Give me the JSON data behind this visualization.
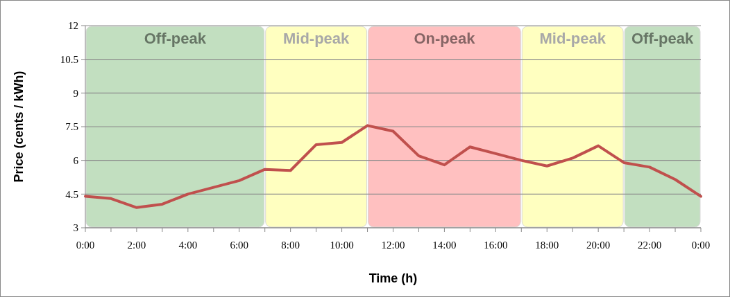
{
  "chart_data": {
    "type": "line",
    "xlabel": "Time (h)",
    "ylabel": "Price (cents / kWh)",
    "x": [
      0,
      1,
      2,
      3,
      4,
      5,
      6,
      7,
      8,
      9,
      10,
      11,
      12,
      13,
      14,
      15,
      16,
      17,
      18,
      19,
      20,
      21,
      22,
      23,
      24
    ],
    "series": [
      {
        "color": "#c0504d",
        "values": [
          4.4,
          4.3,
          3.9,
          4.05,
          4.5,
          4.8,
          5.1,
          5.6,
          5.55,
          6.7,
          6.8,
          7.55,
          7.3,
          6.2,
          5.8,
          6.6,
          6.3,
          6.0,
          5.75,
          6.1,
          6.65,
          5.9,
          5.7,
          5.15,
          4.4
        ]
      }
    ],
    "xlim": [
      0,
      24
    ],
    "xticks": [
      {
        "value": 0,
        "label": "0:00"
      },
      {
        "value": 1,
        "label": null
      },
      {
        "value": 2,
        "label": "2:00"
      },
      {
        "value": 3,
        "label": null
      },
      {
        "value": 4,
        "label": "4:00"
      },
      {
        "value": 5,
        "label": null
      },
      {
        "value": 6,
        "label": "6:00"
      },
      {
        "value": 7,
        "label": null
      },
      {
        "value": 8,
        "label": "8:00"
      },
      {
        "value": 9,
        "label": null
      },
      {
        "value": 10,
        "label": "10:00"
      },
      {
        "value": 11,
        "label": null
      },
      {
        "value": 12,
        "label": "12:00"
      },
      {
        "value": 13,
        "label": null
      },
      {
        "value": 14,
        "label": "14:00"
      },
      {
        "value": 15,
        "label": null
      },
      {
        "value": 16,
        "label": "16:00"
      },
      {
        "value": 17,
        "label": null
      },
      {
        "value": 18,
        "label": "18:00"
      },
      {
        "value": 19,
        "label": null
      },
      {
        "value": 20,
        "label": "20:00"
      },
      {
        "value": 21,
        "label": null
      },
      {
        "value": 22,
        "label": "22:00"
      },
      {
        "value": 23,
        "label": null
      },
      {
        "value": 24,
        "label": "0:00"
      }
    ],
    "ylim": [
      3,
      12
    ],
    "yticks": [
      3,
      4.5,
      6,
      7.5,
      9,
      10.5,
      12
    ],
    "grid": "y",
    "marker": "none",
    "line_style": "solid",
    "bands": [
      {
        "axis": "x",
        "from": 0,
        "to": 7,
        "label": "Off-peak",
        "color": "#c2dfc0"
      },
      {
        "axis": "x",
        "from": 7,
        "to": 11,
        "label": "Mid-peak",
        "color": "#ffffc0"
      },
      {
        "axis": "x",
        "from": 11,
        "to": 17,
        "label": "On-peak",
        "color": "#ffc0c0"
      },
      {
        "axis": "x",
        "from": 17,
        "to": 21,
        "label": "Mid-peak",
        "color": "#ffffc0"
      },
      {
        "axis": "x",
        "from": 21,
        "to": 24,
        "label": "Off-peak",
        "color": "#c2dfc0"
      }
    ]
  }
}
